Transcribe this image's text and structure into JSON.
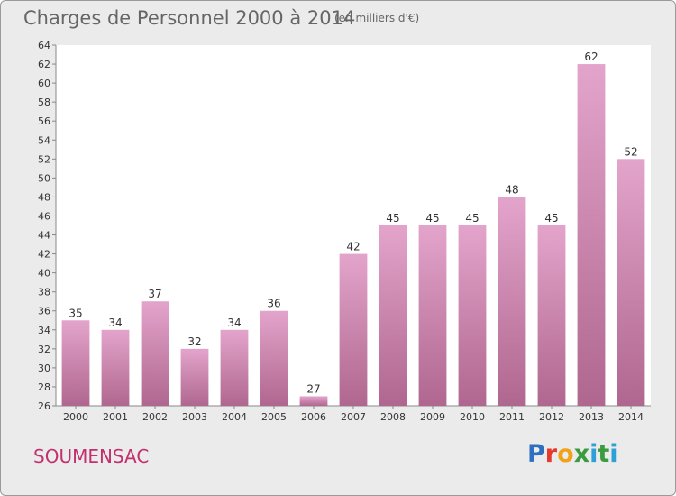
{
  "header": {
    "title": "Charges de Personnel 2000 à 2014",
    "unit": "(en milliers d'€)"
  },
  "footer": {
    "commune": "SOUMENSAC",
    "logo": "Proxiti",
    "logo_colors": [
      "#2f6fc0",
      "#e63a2e",
      "#f0a21a",
      "#3a9b3f",
      "#2f9fd8"
    ]
  },
  "chart_data": {
    "type": "bar",
    "title": "Charges de Personnel 2000 à 2014",
    "subtitle": "(en milliers d'€)",
    "xlabel": "",
    "ylabel": "",
    "categories": [
      "2000",
      "2001",
      "2002",
      "2003",
      "2004",
      "2005",
      "2006",
      "2007",
      "2008",
      "2009",
      "2010",
      "2011",
      "2012",
      "2013",
      "2014"
    ],
    "values": [
      35,
      34,
      37,
      32,
      34,
      36,
      27,
      42,
      45,
      45,
      45,
      48,
      45,
      62,
      52
    ],
    "ylim": [
      26,
      64
    ],
    "yticks": [
      26,
      28,
      30,
      32,
      34,
      36,
      38,
      40,
      42,
      44,
      46,
      48,
      50,
      52,
      54,
      56,
      58,
      60,
      62,
      64
    ],
    "grid": false,
    "legend": "none",
    "bar_color_top": "#e3a4cb",
    "bar_color_bottom": "#b0678f",
    "plot_background": "#ffffff"
  }
}
